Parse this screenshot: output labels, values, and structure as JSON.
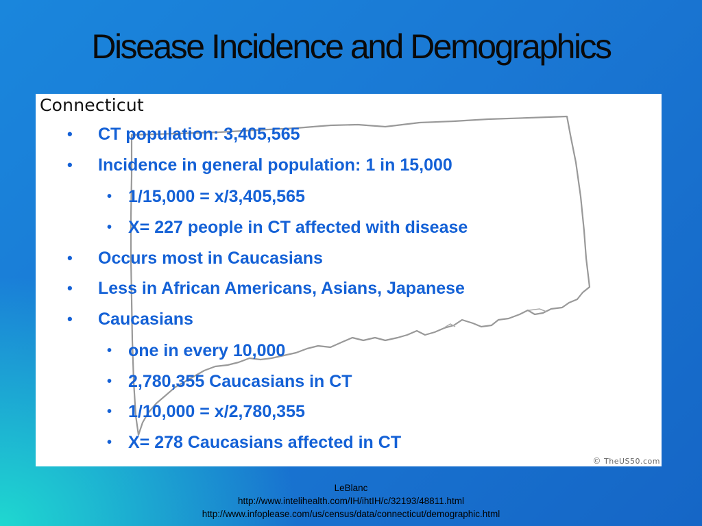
{
  "slide": {
    "title": "Disease Incidence and Demographics"
  },
  "map": {
    "label": "Connecticut",
    "credit_symbol": "©",
    "credit_text": "TheUS50.com",
    "outline_color": "#999999"
  },
  "bullets": [
    {
      "text": "CT population: 3,405,565",
      "level": 1
    },
    {
      "text": "Incidence in general population: 1 in 15,000",
      "level": 1
    },
    {
      "text": "1/15,000 = x/3,405,565",
      "level": 2
    },
    {
      "text": "X= 227 people in CT affected with disease",
      "level": 2
    },
    {
      "text": "Occurs most in Caucasians",
      "level": 1
    },
    {
      "text": "Less in African Americans, Asians, Japanese",
      "level": 1
    },
    {
      "text": "Caucasians",
      "level": 1
    },
    {
      "text": "one in every 10,000",
      "level": 2
    },
    {
      "text": "2,780,355 Caucasians in CT",
      "level": 2
    },
    {
      "text": "1/10,000 = x/2,780,355",
      "level": 2
    },
    {
      "text": "X= 278 Caucasians affected in CT",
      "level": 2
    }
  ],
  "bullet_symbol": "•",
  "footer": {
    "author": "LeBlanc",
    "source1": "http://www.intelihealth.com/IH/ihtIH/c/32193/48811.html",
    "source2": "http://www.infoplease.com/us/census/data/connecticut/demographic.html"
  },
  "colors": {
    "bullet_text": "#1461d6",
    "title_text": "#0a0a0a",
    "background_top": "#1a78d4",
    "background_corner": "#1fd8d0"
  }
}
